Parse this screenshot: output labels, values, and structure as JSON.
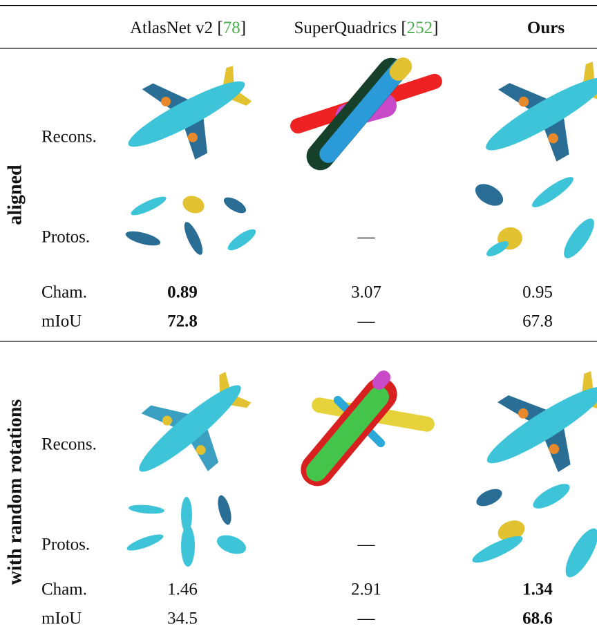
{
  "header": {
    "columns": [
      {
        "parts": [
          "AtlasNet v2 [",
          "78",
          "]"
        ]
      },
      {
        "parts": [
          "SuperQuadrics [",
          "252",
          "]"
        ]
      },
      {
        "parts": [
          "Ours"
        ],
        "bold": true
      }
    ]
  },
  "sections": [
    {
      "label": "aligned",
      "rows": [
        {
          "label": "Recons."
        },
        {
          "label": "Protos.",
          "cells": [
            null,
            "—",
            null
          ]
        },
        {
          "label": "Cham.",
          "cells": [
            0.89,
            3.07,
            0.95
          ],
          "bold": 0
        },
        {
          "label": "mIoU",
          "cells": [
            72.8,
            "—",
            67.8
          ],
          "bold": 0
        }
      ]
    },
    {
      "label": "with random rotations",
      "rows": [
        {
          "label": "Recons."
        },
        {
          "label": "Protos.",
          "cells": [
            null,
            "—",
            null
          ]
        },
        {
          "label": "Cham.",
          "cells": [
            1.46,
            2.91,
            1.34
          ],
          "bold": 2
        },
        {
          "label": "mIoU",
          "cells": [
            34.5,
            "—",
            68.6
          ],
          "bold": 2
        }
      ]
    }
  ]
}
